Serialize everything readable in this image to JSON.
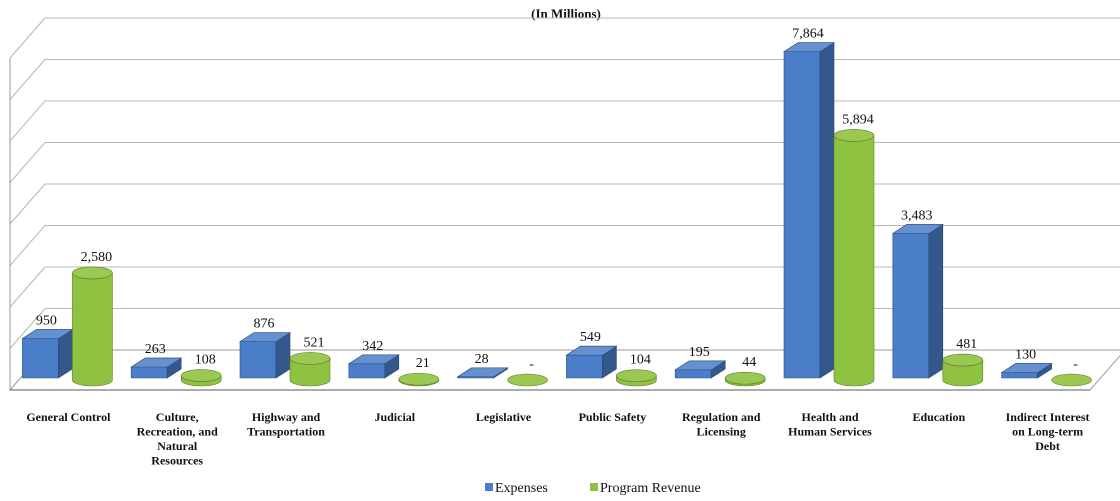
{
  "chart_data": {
    "type": "bar",
    "subtitle": "(In Millions)",
    "categories": [
      "General Control",
      "Culture, Recreation, and Natural Resources",
      "Highway and Transportation",
      "Judicial",
      "Legislative",
      "Public Safety",
      "Regulation and Licensing",
      "Health and Human Services",
      "Education",
      "Indirect Interest on Long-term Debt"
    ],
    "category_lines": [
      [
        "General Control"
      ],
      [
        "Culture,",
        "Recreation, and",
        "Natural",
        "Resources"
      ],
      [
        "Highway and",
        "Transportation"
      ],
      [
        "Judicial"
      ],
      [
        "Legislative"
      ],
      [
        "Public Safety"
      ],
      [
        "Regulation and",
        "Licensing"
      ],
      [
        "Health and",
        "Human Services"
      ],
      [
        "Education"
      ],
      [
        "Indirect Interest",
        "on Long-term",
        "Debt"
      ]
    ],
    "series": [
      {
        "name": "Expenses",
        "color": "#4a7ec8",
        "shape": "box",
        "values": [
          950,
          263,
          876,
          342,
          28,
          549,
          195,
          7864,
          3483,
          130
        ],
        "labels": [
          "950",
          "263",
          "876",
          "342",
          "28",
          "549",
          "195",
          "7,864",
          "3,483",
          "130"
        ]
      },
      {
        "name": "Program Revenue",
        "color": "#8fc240",
        "shape": "cylinder",
        "values": [
          2580,
          108,
          521,
          21,
          0,
          104,
          44,
          5894,
          481,
          0
        ],
        "labels": [
          "2,580",
          "108",
          "521",
          "21",
          "-",
          "104",
          "44",
          "5,894",
          "481",
          "-"
        ]
      }
    ],
    "ylim": [
      0,
      8000
    ],
    "grid": true,
    "legend": "bottom"
  }
}
